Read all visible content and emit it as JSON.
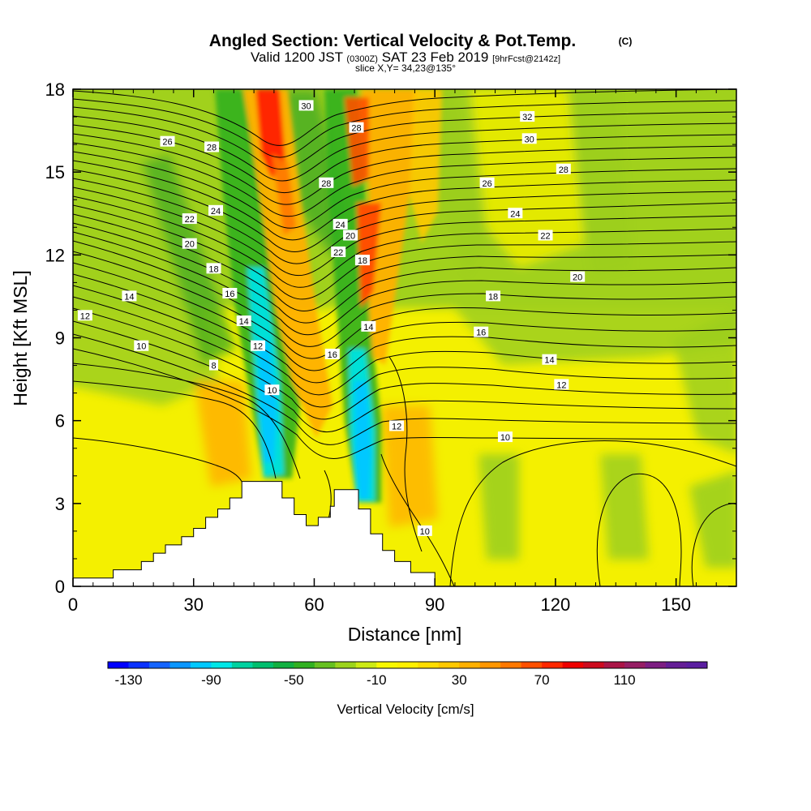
{
  "chart_data": {
    "type": "heatmap",
    "title": "Angled Section: Vertical Velocity & Pot.Temp.",
    "title_mark": "(C)",
    "subtitle": {
      "prefix": "Valid 1200 JST",
      "zulu": "(0300Z)",
      "date": "SAT 23 Feb 2019",
      "forecast": "[9hrFcst@2142z]"
    },
    "slice_label": "slice X,Y= 34,23@135°",
    "xlabel": "Distance [nm]",
    "ylabel": "Height [Kft MSL]",
    "xlim": [
      0,
      165
    ],
    "ylim": [
      0,
      18
    ],
    "x_ticks": [
      0,
      30,
      60,
      90,
      120,
      150
    ],
    "x_tick_labels": [
      "0",
      "30",
      "60",
      "90",
      "120",
      "150"
    ],
    "y_ticks": [
      0,
      3,
      6,
      9,
      12,
      15,
      18
    ],
    "y_tick_labels": [
      "0",
      "3",
      "6",
      "9",
      "12",
      "15",
      "18"
    ],
    "colorbar": {
      "title": "Vertical Velocity [cm/s]",
      "min": -140,
      "max": 150,
      "step": 10,
      "tick_values": [
        -130,
        -90,
        -50,
        -10,
        30,
        70,
        110
      ],
      "tick_labels": [
        "-130",
        "-90",
        "-50",
        "-10",
        "30",
        "70",
        "110"
      ],
      "colors": [
        "#0000ff",
        "#0a32ff",
        "#1464ff",
        "#0a96ff",
        "#00c8ff",
        "#00e6e6",
        "#00d2a0",
        "#00be6e",
        "#10b040",
        "#30b020",
        "#66c020",
        "#9cd41c",
        "#ccea14",
        "#f8f800",
        "#fff000",
        "#ffdc00",
        "#ffc800",
        "#ffb000",
        "#ff9600",
        "#ff7800",
        "#ff5000",
        "#ff2800",
        "#ee0000",
        "#cc0a1e",
        "#aa1446",
        "#961e64",
        "#7d1e82",
        "#641e96",
        "#5a1ea0"
      ]
    },
    "theta_contour_labels": [
      {
        "text": "30",
        "x": 58.0,
        "y": 17.4
      },
      {
        "text": "32",
        "x": 113.0,
        "y": 17.0
      },
      {
        "text": "28",
        "x": 70.5,
        "y": 16.6
      },
      {
        "text": "30",
        "x": 113.5,
        "y": 16.2
      },
      {
        "text": "26",
        "x": 23.5,
        "y": 16.1
      },
      {
        "text": "28",
        "x": 34.5,
        "y": 15.9
      },
      {
        "text": "28",
        "x": 122.0,
        "y": 15.1
      },
      {
        "text": "28",
        "x": 63.0,
        "y": 14.6
      },
      {
        "text": "26",
        "x": 103.0,
        "y": 14.6
      },
      {
        "text": "22",
        "x": 29.0,
        "y": 13.3
      },
      {
        "text": "24",
        "x": 35.5,
        "y": 13.6
      },
      {
        "text": "24",
        "x": 66.5,
        "y": 13.1
      },
      {
        "text": "24",
        "x": 110.0,
        "y": 13.5
      },
      {
        "text": "20",
        "x": 69.0,
        "y": 12.7
      },
      {
        "text": "22",
        "x": 117.5,
        "y": 12.7
      },
      {
        "text": "20",
        "x": 29.0,
        "y": 12.4
      },
      {
        "text": "22",
        "x": 66.0,
        "y": 12.1
      },
      {
        "text": "18",
        "x": 72.0,
        "y": 11.8
      },
      {
        "text": "18",
        "x": 35.0,
        "y": 11.5
      },
      {
        "text": "20",
        "x": 125.5,
        "y": 11.2
      },
      {
        "text": "16",
        "x": 39.0,
        "y": 10.6
      },
      {
        "text": "14",
        "x": 14.0,
        "y": 10.5
      },
      {
        "text": "18",
        "x": 104.5,
        "y": 10.5
      },
      {
        "text": "12",
        "x": 3.0,
        "y": 9.8
      },
      {
        "text": "14",
        "x": 42.5,
        "y": 9.6
      },
      {
        "text": "14",
        "x": 73.5,
        "y": 9.4
      },
      {
        "text": "16",
        "x": 101.5,
        "y": 9.2
      },
      {
        "text": "12",
        "x": 46.0,
        "y": 8.7
      },
      {
        "text": "10",
        "x": 17.0,
        "y": 8.7
      },
      {
        "text": "16",
        "x": 64.5,
        "y": 8.4
      },
      {
        "text": "14",
        "x": 118.5,
        "y": 8.2
      },
      {
        "text": "8",
        "x": 35.0,
        "y": 8.0
      },
      {
        "text": "12",
        "x": 121.5,
        "y": 7.3
      },
      {
        "text": "10",
        "x": 49.5,
        "y": 7.1
      },
      {
        "text": "12",
        "x": 80.5,
        "y": 5.8
      },
      {
        "text": "10",
        "x": 107.5,
        "y": 5.4
      },
      {
        "text": "10",
        "x": 87.5,
        "y": 2.0
      }
    ],
    "terrain_profile": [
      [
        0,
        0.3
      ],
      [
        10,
        0.3
      ],
      [
        10,
        0.6
      ],
      [
        17,
        0.6
      ],
      [
        17,
        0.9
      ],
      [
        20,
        0.9
      ],
      [
        20,
        1.2
      ],
      [
        23,
        1.2
      ],
      [
        23,
        1.5
      ],
      [
        27,
        1.5
      ],
      [
        27,
        1.8
      ],
      [
        30,
        1.8
      ],
      [
        30,
        2.1
      ],
      [
        33,
        2.1
      ],
      [
        33,
        2.5
      ],
      [
        36,
        2.5
      ],
      [
        36,
        2.8
      ],
      [
        39,
        2.8
      ],
      [
        39,
        3.2
      ],
      [
        42,
        3.2
      ],
      [
        42,
        3.8
      ],
      [
        52,
        3.8
      ],
      [
        52,
        3.2
      ],
      [
        55,
        3.2
      ],
      [
        55,
        2.6
      ],
      [
        58,
        2.6
      ],
      [
        58,
        2.2
      ],
      [
        61,
        2.2
      ],
      [
        61,
        2.5
      ],
      [
        64,
        2.5
      ],
      [
        64,
        2.9
      ],
      [
        65,
        2.9
      ],
      [
        65,
        3.5
      ],
      [
        71,
        3.5
      ],
      [
        71,
        2.8
      ],
      [
        74,
        2.8
      ],
      [
        74,
        1.9
      ],
      [
        77,
        1.9
      ],
      [
        77,
        1.3
      ],
      [
        80,
        1.3
      ],
      [
        80,
        0.9
      ],
      [
        84,
        0.9
      ],
      [
        84,
        0.5
      ],
      [
        90,
        0.5
      ],
      [
        90,
        0
      ]
    ]
  }
}
